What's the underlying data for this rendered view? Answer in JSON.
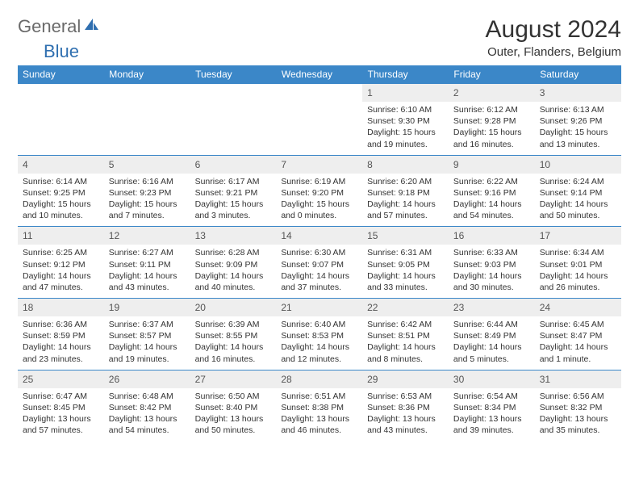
{
  "brand": {
    "general": "General",
    "blue": "Blue"
  },
  "header": {
    "title": "August 2024",
    "location": "Outer, Flanders, Belgium"
  },
  "colors": {
    "header_bg": "#3b87c8",
    "daynum_bg": "#eeeeee",
    "brand_blue": "#2f6fb0",
    "brand_gray": "#6a6a6a"
  },
  "days": [
    "Sunday",
    "Monday",
    "Tuesday",
    "Wednesday",
    "Thursday",
    "Friday",
    "Saturday"
  ],
  "weeks": [
    [
      null,
      null,
      null,
      null,
      {
        "n": "1",
        "sr": "Sunrise: 6:10 AM",
        "ss": "Sunset: 9:30 PM",
        "dl": "Daylight: 15 hours and 19 minutes."
      },
      {
        "n": "2",
        "sr": "Sunrise: 6:12 AM",
        "ss": "Sunset: 9:28 PM",
        "dl": "Daylight: 15 hours and 16 minutes."
      },
      {
        "n": "3",
        "sr": "Sunrise: 6:13 AM",
        "ss": "Sunset: 9:26 PM",
        "dl": "Daylight: 15 hours and 13 minutes."
      }
    ],
    [
      {
        "n": "4",
        "sr": "Sunrise: 6:14 AM",
        "ss": "Sunset: 9:25 PM",
        "dl": "Daylight: 15 hours and 10 minutes."
      },
      {
        "n": "5",
        "sr": "Sunrise: 6:16 AM",
        "ss": "Sunset: 9:23 PM",
        "dl": "Daylight: 15 hours and 7 minutes."
      },
      {
        "n": "6",
        "sr": "Sunrise: 6:17 AM",
        "ss": "Sunset: 9:21 PM",
        "dl": "Daylight: 15 hours and 3 minutes."
      },
      {
        "n": "7",
        "sr": "Sunrise: 6:19 AM",
        "ss": "Sunset: 9:20 PM",
        "dl": "Daylight: 15 hours and 0 minutes."
      },
      {
        "n": "8",
        "sr": "Sunrise: 6:20 AM",
        "ss": "Sunset: 9:18 PM",
        "dl": "Daylight: 14 hours and 57 minutes."
      },
      {
        "n": "9",
        "sr": "Sunrise: 6:22 AM",
        "ss": "Sunset: 9:16 PM",
        "dl": "Daylight: 14 hours and 54 minutes."
      },
      {
        "n": "10",
        "sr": "Sunrise: 6:24 AM",
        "ss": "Sunset: 9:14 PM",
        "dl": "Daylight: 14 hours and 50 minutes."
      }
    ],
    [
      {
        "n": "11",
        "sr": "Sunrise: 6:25 AM",
        "ss": "Sunset: 9:12 PM",
        "dl": "Daylight: 14 hours and 47 minutes."
      },
      {
        "n": "12",
        "sr": "Sunrise: 6:27 AM",
        "ss": "Sunset: 9:11 PM",
        "dl": "Daylight: 14 hours and 43 minutes."
      },
      {
        "n": "13",
        "sr": "Sunrise: 6:28 AM",
        "ss": "Sunset: 9:09 PM",
        "dl": "Daylight: 14 hours and 40 minutes."
      },
      {
        "n": "14",
        "sr": "Sunrise: 6:30 AM",
        "ss": "Sunset: 9:07 PM",
        "dl": "Daylight: 14 hours and 37 minutes."
      },
      {
        "n": "15",
        "sr": "Sunrise: 6:31 AM",
        "ss": "Sunset: 9:05 PM",
        "dl": "Daylight: 14 hours and 33 minutes."
      },
      {
        "n": "16",
        "sr": "Sunrise: 6:33 AM",
        "ss": "Sunset: 9:03 PM",
        "dl": "Daylight: 14 hours and 30 minutes."
      },
      {
        "n": "17",
        "sr": "Sunrise: 6:34 AM",
        "ss": "Sunset: 9:01 PM",
        "dl": "Daylight: 14 hours and 26 minutes."
      }
    ],
    [
      {
        "n": "18",
        "sr": "Sunrise: 6:36 AM",
        "ss": "Sunset: 8:59 PM",
        "dl": "Daylight: 14 hours and 23 minutes."
      },
      {
        "n": "19",
        "sr": "Sunrise: 6:37 AM",
        "ss": "Sunset: 8:57 PM",
        "dl": "Daylight: 14 hours and 19 minutes."
      },
      {
        "n": "20",
        "sr": "Sunrise: 6:39 AM",
        "ss": "Sunset: 8:55 PM",
        "dl": "Daylight: 14 hours and 16 minutes."
      },
      {
        "n": "21",
        "sr": "Sunrise: 6:40 AM",
        "ss": "Sunset: 8:53 PM",
        "dl": "Daylight: 14 hours and 12 minutes."
      },
      {
        "n": "22",
        "sr": "Sunrise: 6:42 AM",
        "ss": "Sunset: 8:51 PM",
        "dl": "Daylight: 14 hours and 8 minutes."
      },
      {
        "n": "23",
        "sr": "Sunrise: 6:44 AM",
        "ss": "Sunset: 8:49 PM",
        "dl": "Daylight: 14 hours and 5 minutes."
      },
      {
        "n": "24",
        "sr": "Sunrise: 6:45 AM",
        "ss": "Sunset: 8:47 PM",
        "dl": "Daylight: 14 hours and 1 minute."
      }
    ],
    [
      {
        "n": "25",
        "sr": "Sunrise: 6:47 AM",
        "ss": "Sunset: 8:45 PM",
        "dl": "Daylight: 13 hours and 57 minutes."
      },
      {
        "n": "26",
        "sr": "Sunrise: 6:48 AM",
        "ss": "Sunset: 8:42 PM",
        "dl": "Daylight: 13 hours and 54 minutes."
      },
      {
        "n": "27",
        "sr": "Sunrise: 6:50 AM",
        "ss": "Sunset: 8:40 PM",
        "dl": "Daylight: 13 hours and 50 minutes."
      },
      {
        "n": "28",
        "sr": "Sunrise: 6:51 AM",
        "ss": "Sunset: 8:38 PM",
        "dl": "Daylight: 13 hours and 46 minutes."
      },
      {
        "n": "29",
        "sr": "Sunrise: 6:53 AM",
        "ss": "Sunset: 8:36 PM",
        "dl": "Daylight: 13 hours and 43 minutes."
      },
      {
        "n": "30",
        "sr": "Sunrise: 6:54 AM",
        "ss": "Sunset: 8:34 PM",
        "dl": "Daylight: 13 hours and 39 minutes."
      },
      {
        "n": "31",
        "sr": "Sunrise: 6:56 AM",
        "ss": "Sunset: 8:32 PM",
        "dl": "Daylight: 13 hours and 35 minutes."
      }
    ]
  ]
}
